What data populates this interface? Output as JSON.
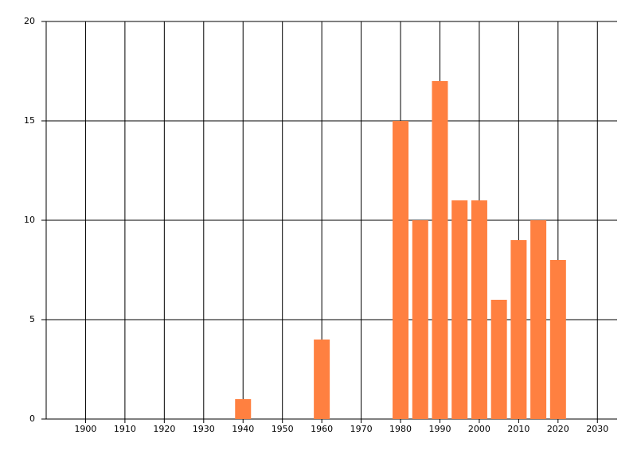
{
  "chart_data": {
    "type": "bar",
    "x": [
      1940,
      1960,
      1980,
      1985,
      1990,
      1995,
      2000,
      2005,
      2010,
      2015,
      2020
    ],
    "values": [
      1,
      4,
      15,
      10,
      17,
      11,
      11,
      6,
      9,
      10,
      8
    ],
    "color": "#ff8040",
    "xlim": [
      1890,
      2035
    ],
    "xticks": [
      1900,
      1910,
      1920,
      1930,
      1940,
      1950,
      1960,
      1970,
      1980,
      1990,
      2000,
      2010,
      2020,
      2030
    ],
    "ylim": [
      0,
      20
    ],
    "yticks": [
      0,
      5,
      10,
      15,
      20
    ],
    "grid": true
  }
}
